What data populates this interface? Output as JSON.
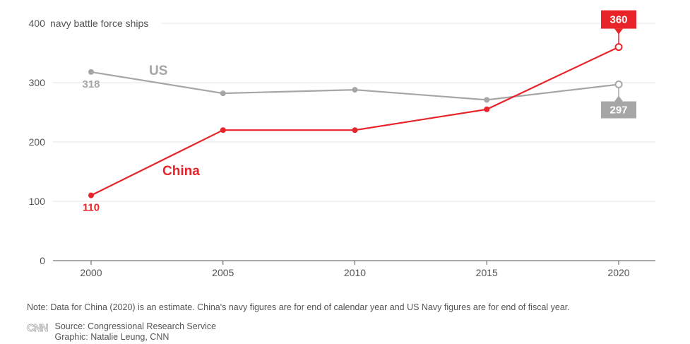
{
  "chart_data": {
    "type": "line",
    "ylabel": "navy battle force ships",
    "x": [
      2000,
      2005,
      2010,
      2015,
      2020
    ],
    "x_ticks": [
      "2000",
      "2005",
      "2010",
      "2015",
      "2020"
    ],
    "y_ticks": [
      "0",
      "100",
      "200",
      "300",
      "400"
    ],
    "ylim": [
      0,
      400
    ],
    "grid": "horizontal",
    "series": [
      {
        "name": "US",
        "values": [
          318,
          282,
          288,
          271,
          297
        ],
        "color": "#a6a6a6"
      },
      {
        "name": "China",
        "values": [
          110,
          220,
          220,
          255,
          360
        ],
        "color": "#e8242a"
      }
    ],
    "data_labels": {
      "us_2000": "318",
      "us_2020": "297",
      "china_2000": "110",
      "china_2020": "360"
    }
  },
  "note": "Note: Data for China (2020) is an estimate. China's navy figures are for end of calendar year and US Navy figures are for end of fiscal year.",
  "footer": {
    "logo": "CNN",
    "source": "Source: Congressional Research Service",
    "graphic": "Graphic: Natalie Leung, CNN"
  }
}
